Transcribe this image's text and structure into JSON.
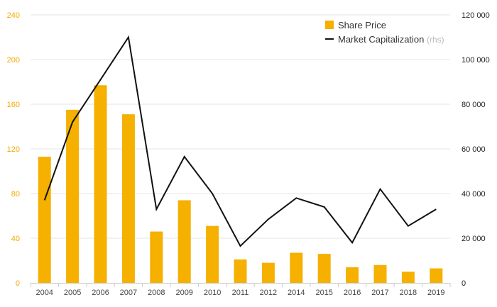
{
  "chart_data": {
    "type": "bar",
    "categories": [
      "2004",
      "2005",
      "2006",
      "2007",
      "2008",
      "2009",
      "2010",
      "2011",
      "2012",
      "2014",
      "2015",
      "2016",
      "2017",
      "2018",
      "2019"
    ],
    "series": [
      {
        "name": "Share Price",
        "type": "bar",
        "axis": "left",
        "color": "#f5b000",
        "values": [
          113,
          155,
          177,
          151,
          46,
          74,
          51,
          21,
          18,
          27,
          26,
          14,
          16,
          10,
          13
        ]
      },
      {
        "name": "Market Capitalization",
        "axis_note": "(rhs)",
        "type": "line",
        "axis": "right",
        "color": "#111111",
        "values": [
          37000,
          72000,
          91000,
          110000,
          33000,
          56500,
          40000,
          16500,
          28500,
          38000,
          34000,
          18000,
          42000,
          25500,
          33000
        ]
      }
    ],
    "y_left": {
      "range": [
        0,
        240
      ],
      "ticks": [
        "0",
        "40",
        "80",
        "120",
        "160",
        "200",
        "240"
      ],
      "color": "#f5a800"
    },
    "y_right": {
      "range": [
        0,
        120000
      ],
      "ticks": [
        "0",
        "20 000",
        "40 000",
        "60 000",
        "80 000",
        "100 000",
        "120 000"
      ]
    },
    "grid": true,
    "legend": {
      "position": "top-right",
      "items": [
        "Share Price",
        "Market Capitalization"
      ],
      "note": "(rhs)"
    }
  }
}
